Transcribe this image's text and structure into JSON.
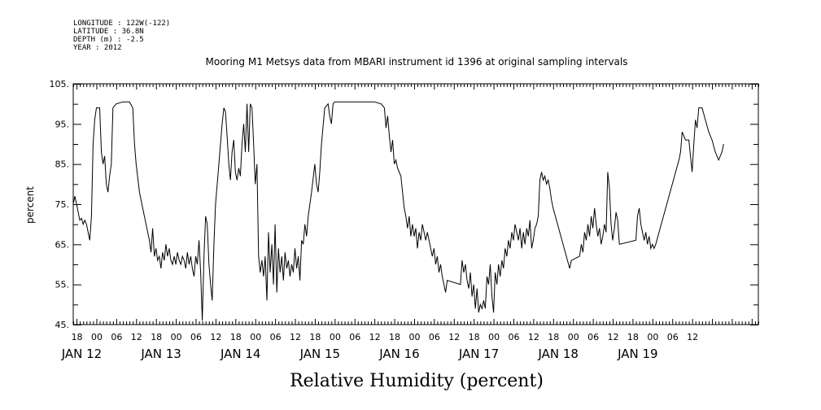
{
  "header": {
    "longitude": "LONGITUDE : 122W(-122)",
    "latitude": "LATITUDE : 36.8N",
    "depth": "DEPTH (m) : -2.5",
    "year": "YEAR : 2012"
  },
  "chart_data": {
    "type": "line",
    "title": "Mooring M1 Metsys data from MBARI instrument id 1396 at original sampling intervals",
    "xlabel": "Relative Humidity (percent)",
    "ylabel": "percent",
    "ylim": [
      45,
      105
    ],
    "yticks": [
      "45.",
      "55.",
      "65.",
      "75.",
      "85.",
      "95.",
      "105."
    ],
    "xlim_hours": [
      -7,
      200
    ],
    "xaxis_origin": "JAN 12 00",
    "hour_labels": [
      "18",
      "00",
      "06",
      "12",
      "18",
      "00",
      "06",
      "12",
      "18",
      "00",
      "06",
      "12",
      "18",
      "00",
      "06",
      "12",
      "18",
      "00",
      "06",
      "12",
      "18",
      "00",
      "06",
      "12",
      "18",
      "00",
      "06",
      "12",
      "18",
      "00",
      "06",
      "12"
    ],
    "day_labels": [
      "JAN 12",
      "JAN 13",
      "JAN 14",
      "JAN 15",
      "JAN 16",
      "JAN 17",
      "JAN 18",
      "JAN 19"
    ],
    "grid": false,
    "series": [
      {
        "color": "#000000",
        "points": [
          [
            -7,
            75
          ],
          [
            -6.5,
            77
          ],
          [
            -6,
            75
          ],
          [
            -5.5,
            73
          ],
          [
            -5,
            71
          ],
          [
            -4.5,
            71.5
          ],
          [
            -4,
            70
          ],
          [
            -3.5,
            71
          ],
          [
            -3,
            70
          ],
          [
            -2.5,
            68
          ],
          [
            -2,
            66
          ],
          [
            -1.5,
            72
          ],
          [
            -1,
            90
          ],
          [
            -0.5,
            96
          ],
          [
            0,
            99
          ],
          [
            0.5,
            99
          ],
          [
            1,
            99
          ],
          [
            1.5,
            88
          ],
          [
            2,
            85
          ],
          [
            2.5,
            87
          ],
          [
            3,
            80
          ],
          [
            3.5,
            78
          ],
          [
            4,
            82
          ],
          [
            4.5,
            85
          ],
          [
            5,
            99
          ],
          [
            6,
            100
          ],
          [
            8,
            100.5
          ],
          [
            10,
            100.5
          ],
          [
            11,
            99
          ],
          [
            11.5,
            90
          ],
          [
            12,
            85
          ],
          [
            13,
            78
          ],
          [
            14,
            74
          ],
          [
            15,
            70
          ],
          [
            16,
            66
          ],
          [
            16.5,
            63
          ],
          [
            17,
            69
          ],
          [
            17.5,
            62
          ],
          [
            18,
            64
          ],
          [
            18.5,
            61
          ],
          [
            19,
            62
          ],
          [
            19.5,
            59
          ],
          [
            20,
            63
          ],
          [
            20.5,
            61
          ],
          [
            21,
            65
          ],
          [
            21.5,
            62
          ],
          [
            22,
            64
          ],
          [
            22.5,
            61
          ],
          [
            23,
            60
          ],
          [
            23.5,
            62
          ],
          [
            24,
            60
          ],
          [
            24.5,
            63
          ],
          [
            25,
            61
          ],
          [
            25.5,
            60
          ],
          [
            26,
            62
          ],
          [
            26.5,
            61
          ],
          [
            27,
            59
          ],
          [
            27.5,
            63
          ],
          [
            28,
            60
          ],
          [
            28.5,
            62
          ],
          [
            29,
            59
          ],
          [
            29.5,
            57
          ],
          [
            30,
            62
          ],
          [
            30.5,
            60
          ],
          [
            31,
            66
          ],
          [
            31.5,
            58
          ],
          [
            32,
            46
          ],
          [
            32.5,
            62
          ],
          [
            33,
            72
          ],
          [
            33.5,
            70
          ],
          [
            34,
            60
          ],
          [
            34.5,
            55
          ],
          [
            35,
            51
          ],
          [
            35.5,
            65
          ],
          [
            36,
            75
          ],
          [
            37,
            85
          ],
          [
            38,
            95
          ],
          [
            38.5,
            99
          ],
          [
            39,
            98
          ],
          [
            39.5,
            92
          ],
          [
            40,
            85
          ],
          [
            40.5,
            81
          ],
          [
            41,
            88
          ],
          [
            41.5,
            91
          ],
          [
            42,
            83
          ],
          [
            42.5,
            81
          ],
          [
            43,
            84
          ],
          [
            43.5,
            82
          ],
          [
            44,
            90
          ],
          [
            44.5,
            95
          ],
          [
            45,
            88
          ],
          [
            45.5,
            100
          ],
          [
            46,
            88
          ],
          [
            46.5,
            100
          ],
          [
            47,
            99
          ],
          [
            47.5,
            90
          ],
          [
            48,
            80
          ],
          [
            48.5,
            85
          ],
          [
            49,
            62
          ],
          [
            49.5,
            58
          ],
          [
            50,
            61
          ],
          [
            50.5,
            57
          ],
          [
            51,
            62
          ],
          [
            51.5,
            51
          ],
          [
            52,
            68
          ],
          [
            52.5,
            58
          ],
          [
            53,
            65
          ],
          [
            53.5,
            55
          ],
          [
            54,
            70
          ],
          [
            54.5,
            53
          ],
          [
            55,
            64
          ],
          [
            55.5,
            58
          ],
          [
            56,
            62
          ],
          [
            56.5,
            56
          ],
          [
            57,
            63
          ],
          [
            57.5,
            59
          ],
          [
            58,
            61
          ],
          [
            58.5,
            57
          ],
          [
            59,
            60
          ],
          [
            59.5,
            58
          ],
          [
            60,
            64
          ],
          [
            60.5,
            59
          ],
          [
            61,
            62
          ],
          [
            61.5,
            56
          ],
          [
            62,
            66
          ],
          [
            62.5,
            65
          ],
          [
            63,
            70
          ],
          [
            63.5,
            67
          ],
          [
            64,
            72
          ],
          [
            65,
            78
          ],
          [
            66,
            85
          ],
          [
            66.5,
            80
          ],
          [
            67,
            78
          ],
          [
            67.5,
            83
          ],
          [
            68,
            90
          ],
          [
            69,
            99
          ],
          [
            70,
            100
          ],
          [
            70.5,
            97
          ],
          [
            71,
            95
          ],
          [
            71.5,
            100
          ],
          [
            72,
            100.5
          ],
          [
            76,
            100.5
          ],
          [
            80,
            100.5
          ],
          [
            84,
            100.5
          ],
          [
            86,
            100
          ],
          [
            87,
            99
          ],
          [
            87.5,
            94
          ],
          [
            88,
            97
          ],
          [
            88.5,
            92
          ],
          [
            89,
            88
          ],
          [
            89.5,
            91
          ],
          [
            90,
            85
          ],
          [
            90.5,
            86
          ],
          [
            91,
            84
          ],
          [
            92,
            82
          ],
          [
            92.5,
            78
          ],
          [
            93,
            74
          ],
          [
            93.5,
            72
          ],
          [
            94,
            69
          ],
          [
            94.5,
            72
          ],
          [
            95,
            67
          ],
          [
            95.5,
            70
          ],
          [
            96,
            67
          ],
          [
            96.5,
            69
          ],
          [
            97,
            64
          ],
          [
            97.5,
            68
          ],
          [
            98,
            66
          ],
          [
            98.5,
            70
          ],
          [
            99,
            68
          ],
          [
            99.5,
            66
          ],
          [
            100,
            68
          ],
          [
            100.5,
            66
          ],
          [
            101,
            64
          ],
          [
            101.5,
            62
          ],
          [
            102,
            64
          ],
          [
            102.5,
            60
          ],
          [
            103,
            62
          ],
          [
            103.5,
            58
          ],
          [
            104,
            60
          ],
          [
            104.5,
            57
          ],
          [
            105,
            55
          ],
          [
            105.5,
            53
          ],
          [
            106,
            56
          ],
          [
            110,
            55
          ],
          [
            110.5,
            61
          ],
          [
            111,
            58
          ],
          [
            111.5,
            60
          ],
          [
            112,
            56
          ],
          [
            112.5,
            54
          ],
          [
            113,
            58
          ],
          [
            113.5,
            52
          ],
          [
            114,
            55
          ],
          [
            114.5,
            49
          ],
          [
            115,
            54
          ],
          [
            115.5,
            48
          ],
          [
            116,
            50
          ],
          [
            116.5,
            49
          ],
          [
            117,
            51
          ],
          [
            117.5,
            49
          ],
          [
            118,
            57
          ],
          [
            118.5,
            55
          ],
          [
            119,
            60
          ],
          [
            119.5,
            52
          ],
          [
            120,
            48
          ],
          [
            120.5,
            58
          ],
          [
            121,
            55
          ],
          [
            121.5,
            60
          ],
          [
            122,
            57
          ],
          [
            122.5,
            61
          ],
          [
            123,
            59
          ],
          [
            123.5,
            64
          ],
          [
            124,
            62
          ],
          [
            124.5,
            66
          ],
          [
            125,
            64
          ],
          [
            125.5,
            68
          ],
          [
            126,
            66
          ],
          [
            126.5,
            70
          ],
          [
            127,
            68
          ],
          [
            127.5,
            66
          ],
          [
            128,
            69
          ],
          [
            128.5,
            64
          ],
          [
            129,
            68
          ],
          [
            129.5,
            65
          ],
          [
            130,
            69
          ],
          [
            130.5,
            67
          ],
          [
            131,
            71
          ],
          [
            131.5,
            64
          ],
          [
            132,
            66
          ],
          [
            132.5,
            69
          ],
          [
            133,
            70
          ],
          [
            133.5,
            72
          ],
          [
            134,
            81
          ],
          [
            134.5,
            83
          ],
          [
            135,
            81
          ],
          [
            135.5,
            82
          ],
          [
            136,
            80
          ],
          [
            136.5,
            81
          ],
          [
            137,
            79
          ],
          [
            137.5,
            76
          ],
          [
            138,
            74
          ],
          [
            143,
            59
          ],
          [
            143.5,
            61
          ],
          [
            146,
            62
          ],
          [
            146.5,
            65
          ],
          [
            147,
            63
          ],
          [
            147.5,
            68
          ],
          [
            148,
            66
          ],
          [
            148.5,
            70
          ],
          [
            149,
            67
          ],
          [
            149.5,
            72
          ],
          [
            150,
            69
          ],
          [
            150.5,
            74
          ],
          [
            151,
            70
          ],
          [
            151.5,
            67
          ],
          [
            152,
            69
          ],
          [
            152.5,
            65
          ],
          [
            153,
            67
          ],
          [
            153.5,
            70
          ],
          [
            154,
            68
          ],
          [
            154.5,
            83
          ],
          [
            155,
            79
          ],
          [
            155.5,
            70
          ],
          [
            156,
            66
          ],
          [
            156.5,
            69
          ],
          [
            157,
            73
          ],
          [
            157.5,
            71
          ],
          [
            158,
            65
          ],
          [
            163,
            66
          ],
          [
            163.5,
            72
          ],
          [
            164,
            74
          ],
          [
            164.5,
            70
          ],
          [
            165,
            68
          ],
          [
            165.5,
            66
          ],
          [
            166,
            68
          ],
          [
            166.5,
            65
          ],
          [
            167,
            67
          ],
          [
            167.5,
            64
          ],
          [
            168,
            65
          ],
          [
            168.5,
            64
          ],
          [
            169,
            65
          ],
          [
            176,
            86
          ],
          [
            176.5,
            88
          ],
          [
            177,
            93
          ],
          [
            178,
            91
          ],
          [
            179,
            91
          ],
          [
            179.5,
            87
          ],
          [
            180,
            83
          ],
          [
            180.5,
            90
          ],
          [
            181,
            96
          ],
          [
            181.5,
            94
          ],
          [
            182,
            99
          ],
          [
            183,
            99
          ],
          [
            184,
            96
          ],
          [
            185,
            93
          ],
          [
            186,
            91
          ],
          [
            187,
            88
          ],
          [
            188,
            86
          ],
          [
            189,
            88
          ],
          [
            189.5,
            90
          ]
        ]
      }
    ]
  }
}
